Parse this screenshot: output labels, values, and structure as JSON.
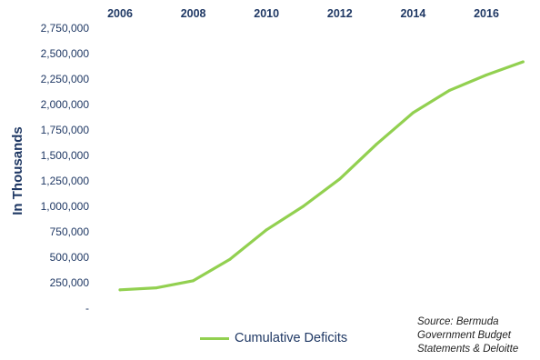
{
  "chart_data": {
    "type": "line",
    "title": "",
    "xlabel": "",
    "ylabel": "In Thousands",
    "x_axis_position": "top",
    "x_tick_labels": [
      "2006",
      "2008",
      "2010",
      "2012",
      "2014",
      "2016"
    ],
    "y_tick_labels": [
      "-",
      "250,000",
      "500,000",
      "750,000",
      "1,000,000",
      "1,250,000",
      "1,500,000",
      "1,750,000",
      "2,000,000",
      "2,250,000",
      "2,500,000",
      "2,750,000"
    ],
    "ylim": [
      0,
      2750000
    ],
    "xlim": [
      2006,
      2017
    ],
    "grid": false,
    "legend_position": "bottom",
    "line_color": "#92d050",
    "text_color": "#1f3864",
    "series": [
      {
        "name": "Cumulative Deficits",
        "x": [
          2006,
          2007,
          2008,
          2009,
          2010,
          2011,
          2012,
          2013,
          2014,
          2015,
          2016,
          2017
        ],
        "values": [
          180000,
          200000,
          270000,
          480000,
          770000,
          1000000,
          1270000,
          1610000,
          1920000,
          2140000,
          2290000,
          2420000
        ]
      }
    ],
    "annotation": [
      "Source: Bermuda",
      "Government Budget",
      "Statements & Deloitte"
    ]
  }
}
